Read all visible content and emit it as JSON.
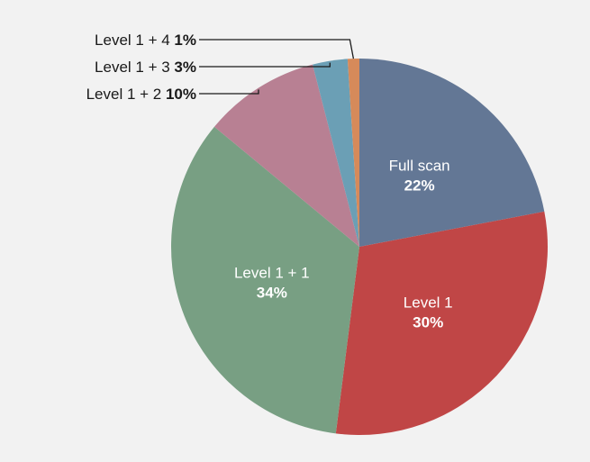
{
  "chart_data": {
    "type": "pie",
    "start_angle_deg": 0,
    "direction": "clockwise",
    "slices": [
      {
        "label": "Full scan",
        "pct_label": "22%",
        "value": 22,
        "color": "#637795",
        "label_pos": "inside"
      },
      {
        "label": "Level 1",
        "pct_label": "30%",
        "value": 30,
        "color": "#c04646",
        "label_pos": "inside"
      },
      {
        "label": "Level 1 + 1",
        "pct_label": "34%",
        "value": 34,
        "color": "#789f83",
        "label_pos": "inside"
      },
      {
        "label": "Level 1 + 2",
        "pct_label": "10%",
        "value": 10,
        "color": "#b88093",
        "label_pos": "outside"
      },
      {
        "label": "Level 1 + 3",
        "pct_label": "3%",
        "value": 3,
        "color": "#6b9fb5",
        "label_pos": "outside"
      },
      {
        "label": "Level 1 + 4",
        "pct_label": "1%",
        "value": 1,
        "color": "#d68a5a",
        "label_pos": "outside"
      }
    ]
  }
}
